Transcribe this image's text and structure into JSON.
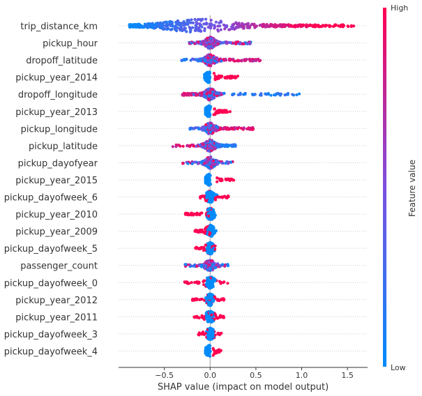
{
  "chart_data": {
    "type": "scatter",
    "subtype": "shap-summary-beeswarm",
    "xlabel": "SHAP value (impact on model output)",
    "xlim": [
      -1.0,
      1.72
    ],
    "xticks": [
      -0.5,
      0.0,
      0.5,
      1.0,
      1.5
    ],
    "xtick_labels": [
      "−0.5",
      "0.0",
      "0.5",
      "1.0",
      "1.5"
    ],
    "grid": "horizontal-per-feature",
    "zero_line": true,
    "colorbar": {
      "label": "Feature value",
      "high_label": "High",
      "low_label": "Low",
      "low_color": "#008bfb",
      "high_color": "#ff0052"
    },
    "features": [
      {
        "name": "trip_distance_km",
        "min": -0.88,
        "max": 1.58,
        "density": 1.0,
        "mode": "dist"
      },
      {
        "name": "pickup_hour",
        "min": -0.23,
        "max": 0.45,
        "density": 0.35,
        "mode": "hourly"
      },
      {
        "name": "dropoff_latitude",
        "min": -0.33,
        "max": 0.55,
        "density": 0.45,
        "mode": "posright"
      },
      {
        "name": "pickup_year_2014",
        "min": -0.08,
        "max": 0.33,
        "density": 0.25,
        "mode": "binary_high_right"
      },
      {
        "name": "dropoff_longitude",
        "min": -0.31,
        "max": 0.98,
        "density": 0.5,
        "mode": "lowright"
      },
      {
        "name": "pickup_year_2013",
        "min": -0.05,
        "max": 0.22,
        "density": 0.22,
        "mode": "binary_high_right"
      },
      {
        "name": "pickup_longitude",
        "min": -0.3,
        "max": 0.48,
        "density": 0.35,
        "mode": "posright"
      },
      {
        "name": "pickup_latitude",
        "min": -0.42,
        "max": 0.28,
        "density": 0.35,
        "mode": "lowright"
      },
      {
        "name": "pickup_dayofyear",
        "min": -0.3,
        "max": 0.25,
        "density": 0.25,
        "mode": "mixed"
      },
      {
        "name": "pickup_year_2015",
        "min": -0.05,
        "max": 0.27,
        "density": 0.22,
        "mode": "binary_high_right"
      },
      {
        "name": "pickup_dayofweek_6",
        "min": -0.12,
        "max": 0.22,
        "density": 0.18,
        "mode": "binary_high_mixed"
      },
      {
        "name": "pickup_year_2010",
        "min": -0.27,
        "max": 0.12,
        "density": 0.2,
        "mode": "binary_high_left"
      },
      {
        "name": "pickup_year_2009",
        "min": -0.17,
        "max": 0.1,
        "density": 0.15,
        "mode": "binary_high_left"
      },
      {
        "name": "pickup_dayofweek_5",
        "min": -0.17,
        "max": 0.14,
        "density": 0.15,
        "mode": "binary_high_mixed"
      },
      {
        "name": "passenger_count",
        "min": -0.28,
        "max": 0.2,
        "density": 0.18,
        "mode": "mixed"
      },
      {
        "name": "pickup_dayofweek_0",
        "min": -0.28,
        "max": 0.2,
        "density": 0.18,
        "mode": "binary_high_mixed"
      },
      {
        "name": "pickup_year_2012",
        "min": -0.2,
        "max": 0.16,
        "density": 0.15,
        "mode": "binary_high_mixed"
      },
      {
        "name": "pickup_year_2011",
        "min": -0.18,
        "max": 0.15,
        "density": 0.15,
        "mode": "binary_high_mixed"
      },
      {
        "name": "pickup_dayofweek_3",
        "min": -0.15,
        "max": 0.14,
        "density": 0.13,
        "mode": "binary_high_mixed"
      },
      {
        "name": "pickup_dayofweek_4",
        "min": -0.05,
        "max": 0.12,
        "density": 0.12,
        "mode": "binary_high_right"
      }
    ]
  }
}
